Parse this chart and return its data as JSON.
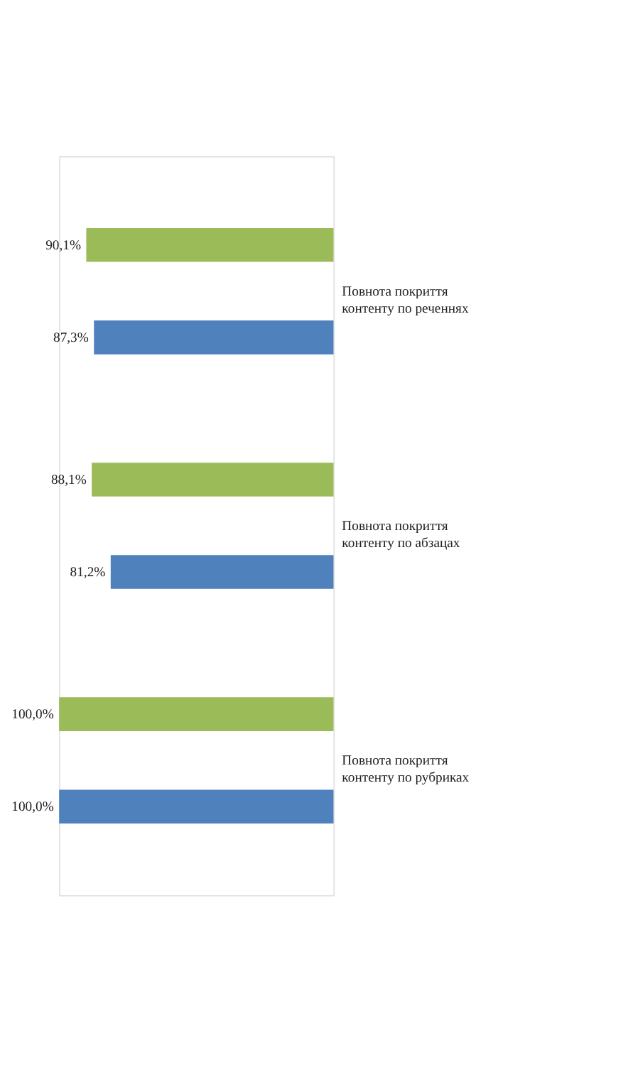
{
  "chart_data": {
    "type": "bar",
    "orientation": "horizontal",
    "data_labels": true,
    "categories": [
      "Повнота покриття контенту по реченнях",
      "Повнота покриття контенту по абзацах",
      "Повнота покриття контенту по рубриках"
    ],
    "series": [
      {
        "color": "#4f81bd",
        "values": [
          87.3,
          81.2,
          100.0
        ],
        "value_labels": [
          "87,3%",
          "81,2%",
          "100,0%"
        ]
      },
      {
        "color": "#9bbb59",
        "values": [
          90.1,
          88.1,
          100.0
        ],
        "value_labels": [
          "90,1%",
          "88,1%",
          "100,0%"
        ]
      }
    ]
  }
}
